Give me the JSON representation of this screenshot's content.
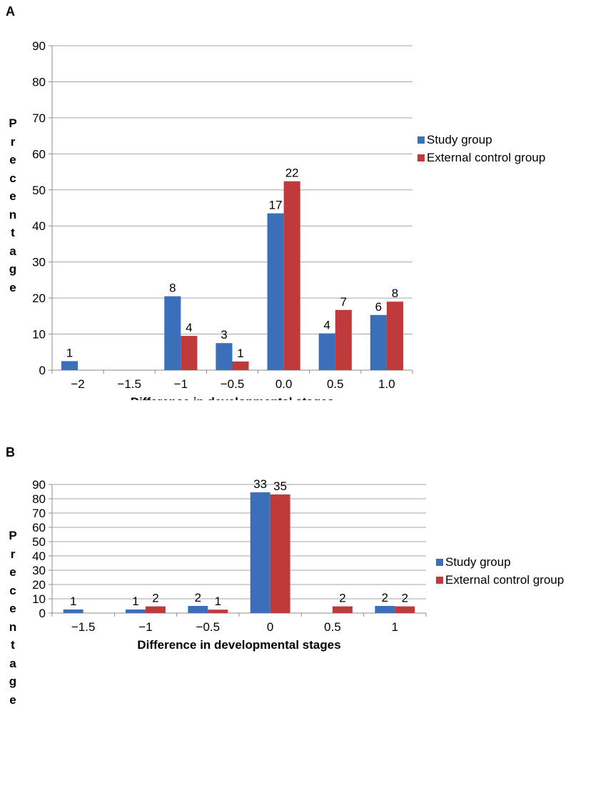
{
  "colors": {
    "study": "#3b6fba",
    "control": "#bf3b3b",
    "grid": "#a6a6a6",
    "axis": "#8c8c8c"
  },
  "chart_data": [
    {
      "type": "bar",
      "panel": "A",
      "categories": [
        "−2",
        "−1.5",
        "−1",
        "−0.5",
        "0.0",
        "0.5",
        "1.0"
      ],
      "series": [
        {
          "name": "Study group",
          "values": [
            2.5,
            null,
            20.5,
            7.5,
            43.5,
            10.2,
            15.3
          ],
          "labels": [
            "1",
            "",
            "8",
            "3",
            "17",
            "4",
            "6"
          ]
        },
        {
          "name": "External control group",
          "values": [
            null,
            null,
            9.5,
            2.4,
            52.4,
            16.7,
            19.0
          ],
          "labels": [
            "",
            "",
            "4",
            "1",
            "22",
            "7",
            "8"
          ]
        }
      ],
      "yticks": [
        "0",
        "10",
        "20",
        "30",
        "40",
        "50",
        "60",
        "70",
        "80",
        "90"
      ],
      "ylim": [
        0,
        90
      ],
      "xlabel": "Difference in developmental stages",
      "ylabel": [
        "P",
        "r",
        "e",
        "c",
        "e",
        "n",
        "t",
        "a",
        "g",
        "e"
      ],
      "legend": "right",
      "grid": true
    },
    {
      "type": "bar",
      "panel": "B",
      "categories": [
        "−1.5",
        "−1",
        "−0.5",
        "0",
        "0.5",
        "1"
      ],
      "series": [
        {
          "name": "Study group",
          "values": [
            2.5,
            2.5,
            5.0,
            84.5,
            null,
            5.0
          ],
          "labels": [
            "1",
            "1",
            "2",
            "33",
            "",
            "2"
          ]
        },
        {
          "name": "External control group",
          "values": [
            null,
            4.7,
            2.4,
            83.0,
            4.7,
            4.7
          ],
          "labels": [
            "",
            "2",
            "1",
            "35",
            "2",
            "2"
          ]
        }
      ],
      "yticks": [
        "0",
        "10",
        "20",
        "30",
        "40",
        "50",
        "60",
        "70",
        "80",
        "90"
      ],
      "ylim": [
        0,
        90
      ],
      "xlabel": "Difference in developmental stages",
      "ylabel": [
        "P",
        "r",
        "e",
        "c",
        "e",
        "n",
        "t",
        "a",
        "g",
        "e"
      ],
      "legend": "right",
      "grid": true
    }
  ]
}
